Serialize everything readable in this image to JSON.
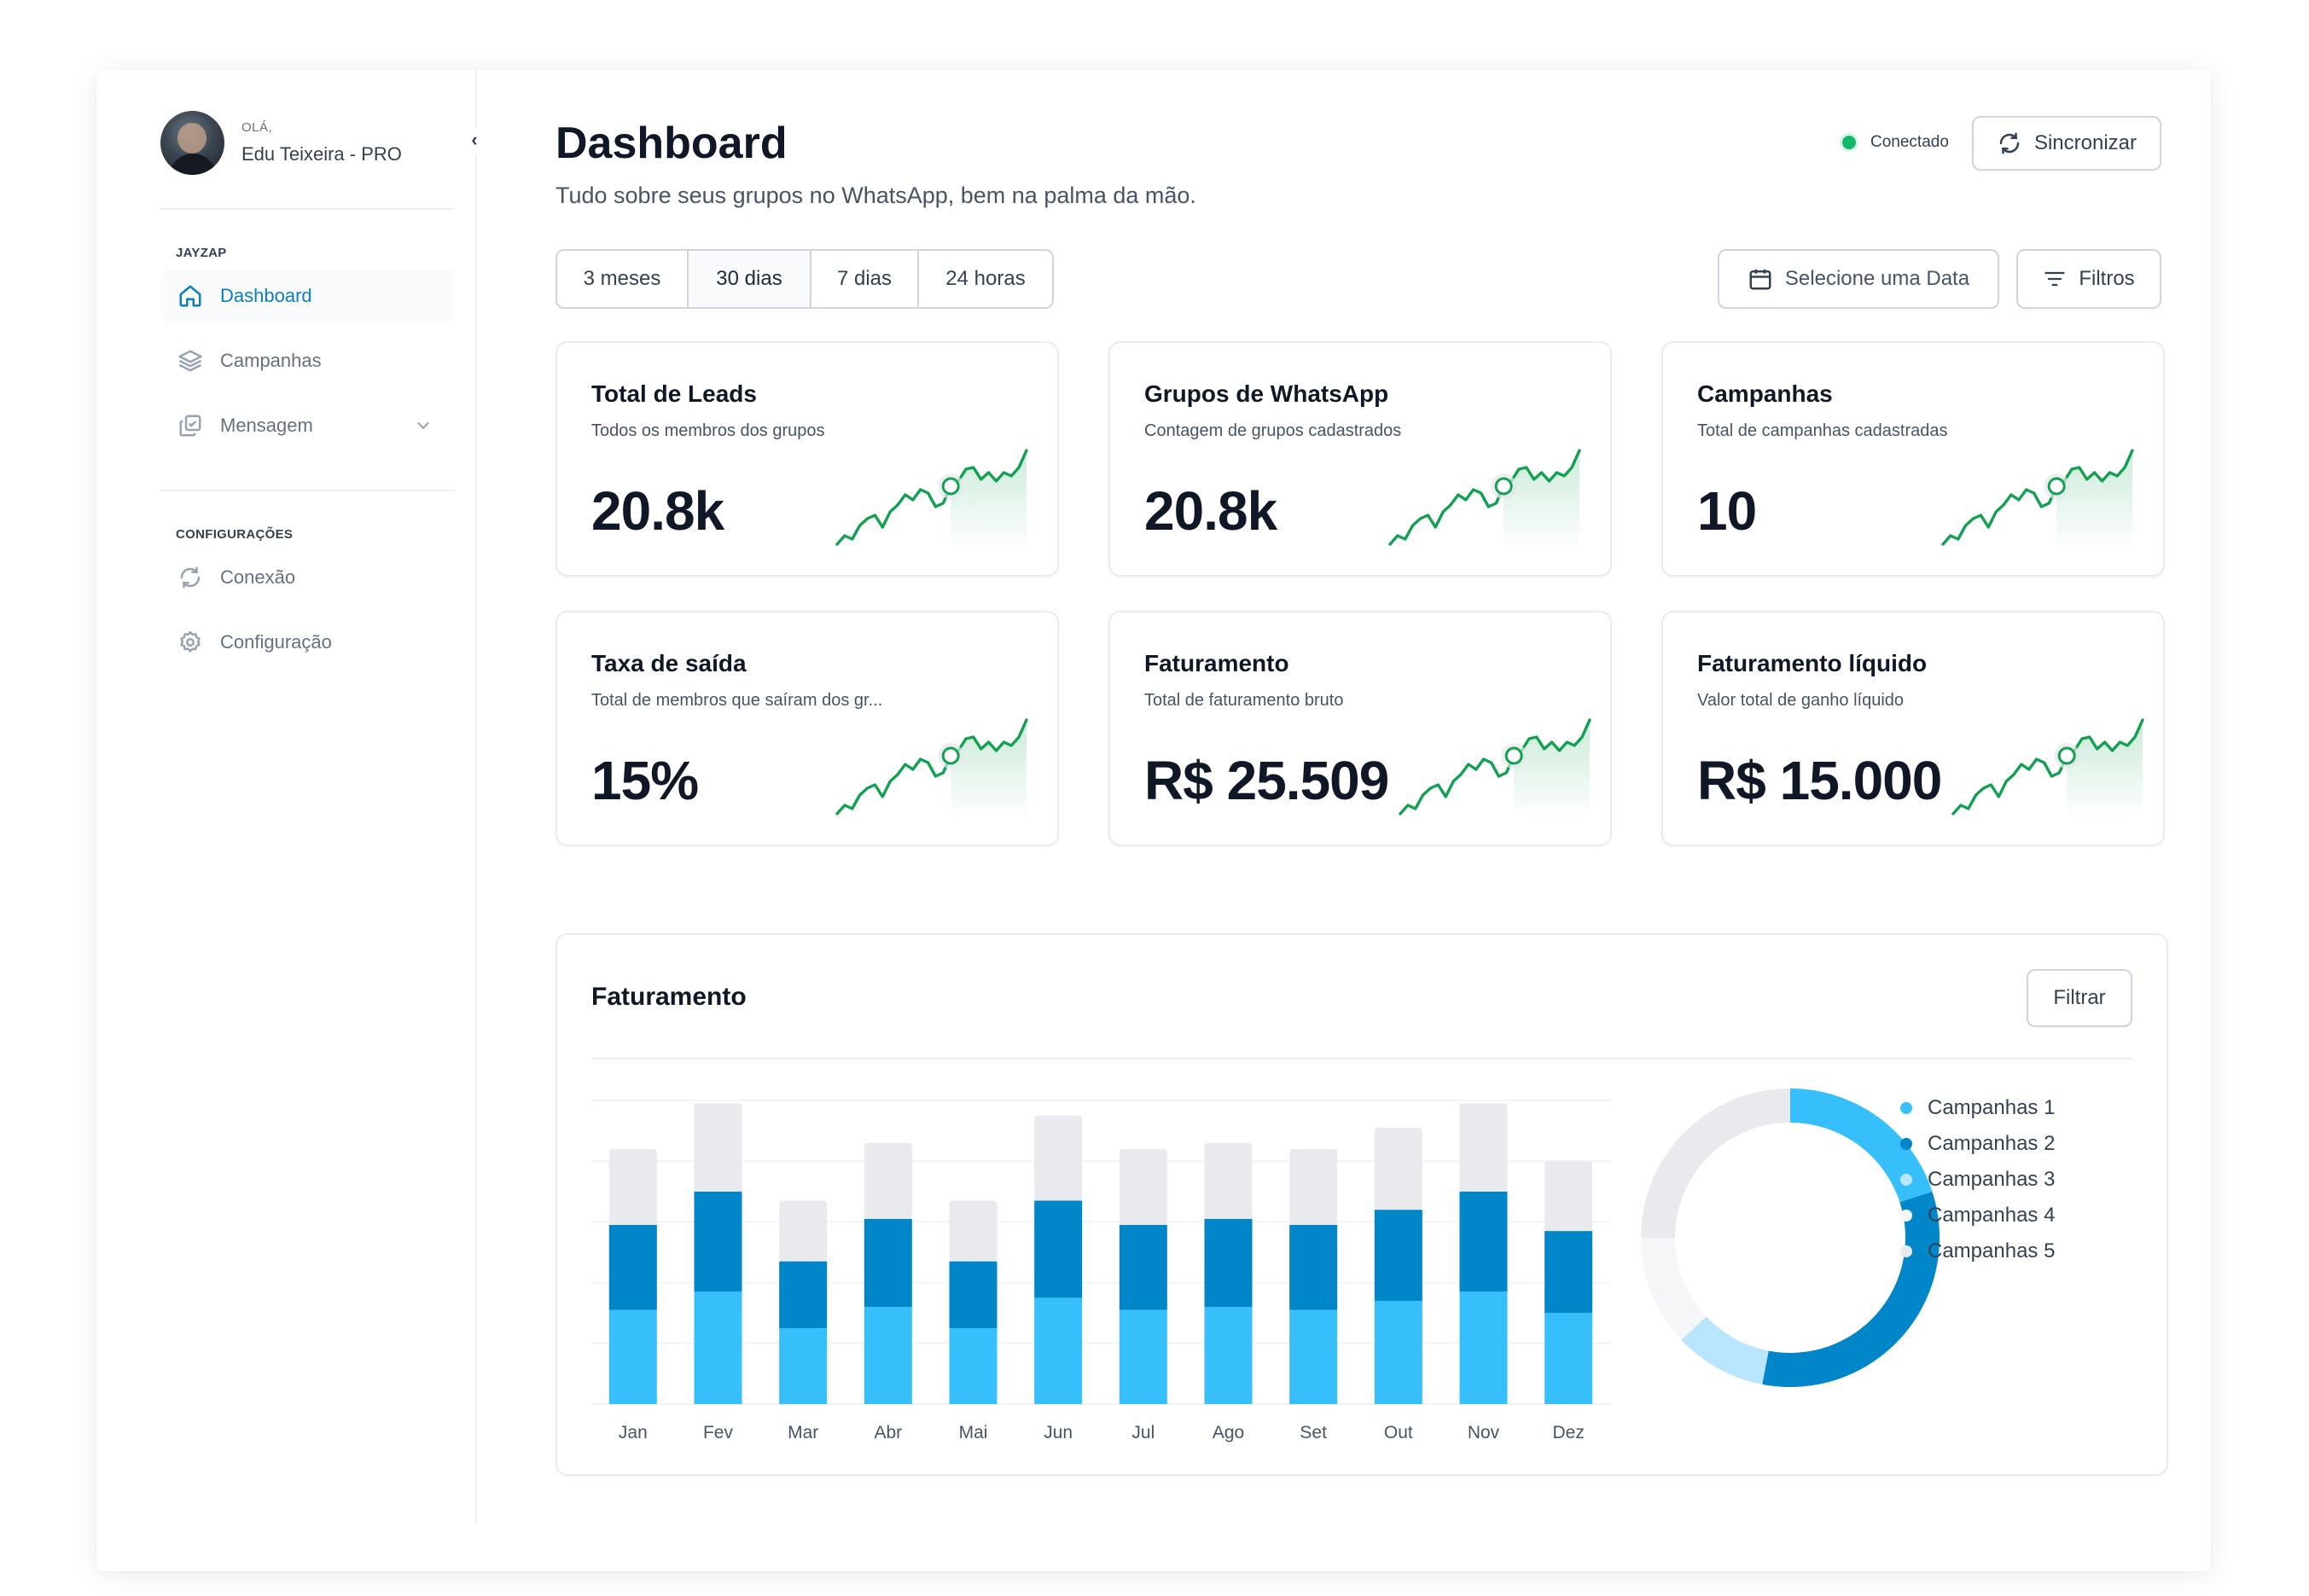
{
  "user": {
    "greeting": "OLÁ,",
    "name": "Edu Teixeira - PRO"
  },
  "sidebar": {
    "section1": "JAYZAP",
    "items1": [
      {
        "label": "Dashboard",
        "icon": "home-icon",
        "active": true
      },
      {
        "label": "Campanhas",
        "icon": "layers-icon"
      },
      {
        "label": "Mensagem",
        "icon": "messages-icon"
      }
    ],
    "section2": "CONFIGURAÇÕES",
    "items2": [
      {
        "label": "Conexão",
        "icon": "refresh-icon"
      },
      {
        "label": "Configuração",
        "icon": "gear-icon"
      }
    ]
  },
  "header": {
    "title": "Dashboard",
    "subtitle": "Tudo sobre seus grupos no WhatsApp, bem na palma da mão.",
    "status": "Conectado",
    "sync_label": "Sincronizar"
  },
  "filters": {
    "ranges": [
      "3 meses",
      "30 dias",
      "7 dias",
      "24 horas"
    ],
    "selected": "30 dias",
    "date_label": "Selecione uma Data",
    "filters_label": "Filtros"
  },
  "cards": [
    {
      "title": "Total de Leads",
      "subtitle": "Todos os membros dos grupos",
      "value": "20.8k"
    },
    {
      "title": "Grupos de WhatsApp",
      "subtitle": "Contagem de grupos cadastrados",
      "value": "20.8k"
    },
    {
      "title": "Campanhas",
      "subtitle": "Total de campanhas cadastradas",
      "value": "10"
    },
    {
      "title": "Taxa de saída",
      "subtitle": "Total de membros que saíram dos gr...",
      "value": "15%"
    },
    {
      "title": "Faturamento",
      "subtitle": "Total de faturamento bruto",
      "value": "R$ 25.509"
    },
    {
      "title": "Faturamento líquido",
      "subtitle": "Valor total de ganho líquido",
      "value": "R$ 15.000"
    }
  ],
  "revenue": {
    "title": "Faturamento",
    "filter_label": "Filtrar"
  },
  "colors": {
    "accent": "#0b7ec1",
    "spark": "#12a150",
    "series": [
      "#36bffa",
      "#0086c9",
      "#b9e6fe",
      "#f5f6f7",
      "#e9eaee"
    ]
  },
  "chart_data": [
    {
      "type": "bar",
      "stacked": true,
      "categories": [
        "Jan",
        "Fev",
        "Mar",
        "Abr",
        "Mai",
        "Jun",
        "Jul",
        "Ago",
        "Set",
        "Out",
        "Nov",
        "Dez"
      ],
      "series": [
        {
          "values": [
            31,
            37,
            25,
            32,
            25,
            35,
            31,
            32,
            31,
            34,
            37,
            30
          ]
        },
        {
          "values": [
            28,
            33,
            22,
            29,
            22,
            32,
            28,
            29,
            28,
            30,
            33,
            27
          ]
        },
        {
          "values": [
            25,
            29,
            20,
            25,
            20,
            28,
            25,
            25,
            25,
            27,
            29,
            23
          ]
        }
      ],
      "ylim": [
        0,
        100
      ],
      "grid": true
    },
    {
      "type": "pie",
      "donut": true,
      "series": [
        {
          "name": "Campanhas 1",
          "value": 20
        },
        {
          "name": "Campanhas 2",
          "value": 33
        },
        {
          "name": "Campanhas 3",
          "value": 10
        },
        {
          "name": "Campanhas 4",
          "value": 12
        },
        {
          "name": "Campanhas 5",
          "value": 25
        }
      ],
      "legend": "right"
    },
    {
      "type": "line",
      "sparkline": true,
      "values": [
        3,
        8,
        6,
        14,
        18,
        20,
        13,
        22,
        26,
        32,
        29,
        35,
        33,
        25,
        27,
        37,
        40,
        47,
        48,
        41,
        45,
        40,
        45,
        43,
        48,
        58
      ]
    }
  ]
}
